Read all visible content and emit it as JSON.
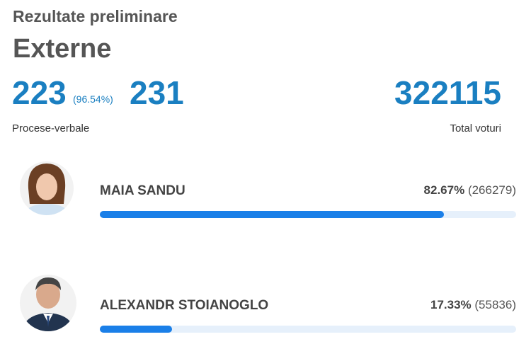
{
  "header": {
    "subtitle": "Rezultate preliminare",
    "title": "Externe"
  },
  "stats": {
    "processed": 223,
    "processed_percent": "(96.54%)",
    "total": 231,
    "processed_label": "Procese-verbale",
    "votes": 322115,
    "votes_label": "Total voturi"
  },
  "candidates": [
    {
      "name": "MAIA SANDU",
      "percent": {
        "value": 82.67,
        "label": "82.67%"
      },
      "votes": "(266279)"
    },
    {
      "name": "ALEXANDR STOIANOGLO",
      "percent": {
        "value": 17.33,
        "label": "17.33%"
      },
      "votes": "(55836)"
    }
  ]
}
